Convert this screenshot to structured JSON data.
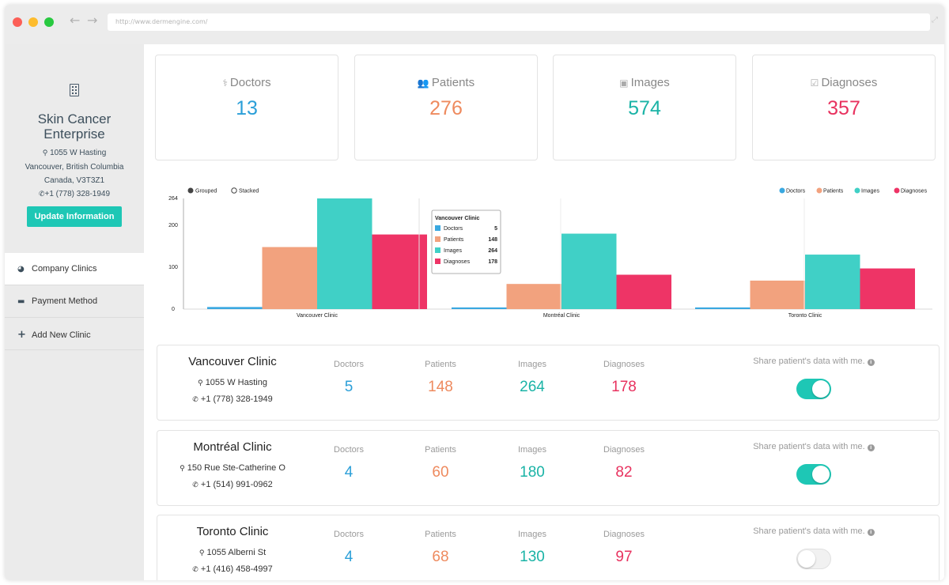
{
  "browser": {
    "url": "http://www.dermengine.com/",
    "back_glyph": "←",
    "forward_glyph": "→",
    "expand_glyph": "⤢"
  },
  "sidebar": {
    "company_name": "Skin Cancer Enterprise",
    "address_line1": "1055 W Hasting",
    "address_line2": "Vancouver, British Columbia",
    "address_line3": "Canada, V3T3Z1",
    "phone": "+1 (778) 328-1949",
    "update_button": "Update Information",
    "menu": [
      {
        "label": "Company Clinics",
        "icon": "pie-chart-icon",
        "glyph": "◕"
      },
      {
        "label": "Payment Method",
        "icon": "credit-card-icon",
        "glyph": "▬"
      },
      {
        "label": "Add New Clinic",
        "icon": "plus-icon",
        "glyph": "+"
      }
    ]
  },
  "stats": [
    {
      "label": "Doctors",
      "value": "13",
      "icon": "user-md-icon",
      "glyph": "⚕",
      "color": "#2b9fd8"
    },
    {
      "label": "Patients",
      "value": "276",
      "icon": "users-icon",
      "glyph": "👥",
      "color": "#ee8a5e"
    },
    {
      "label": "Images",
      "value": "574",
      "icon": "image-icon",
      "glyph": "▣",
      "color": "#1ab3a6"
    },
    {
      "label": "Diagnoses",
      "value": "357",
      "icon": "check-square-icon",
      "glyph": "☑",
      "color": "#e8325f"
    }
  ],
  "chart_data": {
    "type": "bar",
    "categories": [
      "Vancouver Clinic",
      "Montréal Clinic",
      "Toronto Clinic"
    ],
    "series": [
      {
        "name": "Doctors",
        "values": [
          5,
          4,
          4
        ],
        "color": "#3aa8e0"
      },
      {
        "name": "Patients",
        "values": [
          148,
          60,
          68
        ],
        "color": "#f2a27e"
      },
      {
        "name": "Images",
        "values": [
          264,
          180,
          130
        ],
        "color": "#40d0c6"
      },
      {
        "name": "Diagnoses",
        "values": [
          178,
          82,
          97
        ],
        "color": "#ee3466"
      }
    ],
    "yticks": [
      "0",
      "100",
      "200",
      "264"
    ],
    "ylim": [
      0,
      264
    ],
    "mode_options": [
      "Grouped",
      "Stacked"
    ],
    "selected_mode": "Grouped",
    "legend_position": "top-right",
    "grid": false,
    "tooltip": {
      "title": "Vancouver Clinic",
      "rows": [
        {
          "name": "Doctors",
          "value": "5"
        },
        {
          "name": "Patients",
          "value": "148"
        },
        {
          "name": "Images",
          "value": "264"
        },
        {
          "name": "Diagnoses",
          "value": "178"
        }
      ]
    }
  },
  "clinics": [
    {
      "name": "Vancouver Clinic",
      "address": "1055 W Hasting",
      "phone": "+1 (778) 328-1949",
      "doctors": "5",
      "patients": "148",
      "images": "264",
      "diagnoses": "178",
      "share_enabled": true
    },
    {
      "name": "Montréal Clinic",
      "address": "150 Rue Ste-Catherine O",
      "phone": "+1 (514) 991-0962",
      "doctors": "4",
      "patients": "60",
      "images": "180",
      "diagnoses": "82",
      "share_enabled": true
    },
    {
      "name": "Toronto Clinic",
      "address": "1055 Alberni St",
      "phone": "+1 (416) 458-4997",
      "doctors": "4",
      "patients": "68",
      "images": "130",
      "diagnoses": "97",
      "share_enabled": false
    }
  ],
  "labels": {
    "doctors": "Doctors",
    "patients": "Patients",
    "images": "Images",
    "diagnoses": "Diagnoses",
    "share": "Share patient's data with me.",
    "info_glyph": "i",
    "pin_glyph": "⚲",
    "phone_glyph": "✆"
  },
  "colors": {
    "doctors": "#2b9fd8",
    "patients": "#ee8a5e",
    "images": "#1ab3a6",
    "diagnoses": "#e8325f",
    "accent": "#1ec7b5"
  }
}
